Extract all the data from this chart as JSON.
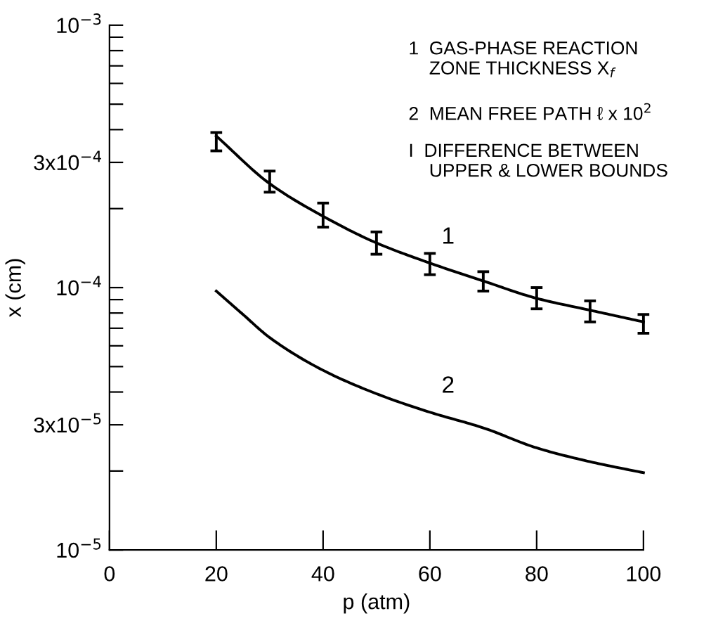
{
  "chart_data": {
    "type": "line",
    "xlabel": "p (atm)",
    "ylabel": "x (cm)",
    "log": "y",
    "xlim": [
      0,
      100
    ],
    "xticks": [
      0,
      20,
      40,
      60,
      80,
      100
    ],
    "ylim": [
      1e-05,
      0.001
    ],
    "yticks": [
      {
        "value": 1e-05,
        "label": "10$^{−5}$"
      },
      {
        "value": 2e-05,
        "label": null
      },
      {
        "value": 3e-05,
        "label": "3x10$^{−5}$"
      },
      {
        "value": 4e-05,
        "label": null
      },
      {
        "value": 5e-05,
        "label": null
      },
      {
        "value": 6e-05,
        "label": null
      },
      {
        "value": 7e-05,
        "label": null
      },
      {
        "value": 8e-05,
        "label": null
      },
      {
        "value": 9e-05,
        "label": null
      },
      {
        "value": 0.0001,
        "label": "10$^{−4}$"
      },
      {
        "value": 0.0002,
        "label": null
      },
      {
        "value": 0.0003,
        "label": "3x10$^{−4}$"
      },
      {
        "value": 0.0004,
        "label": null
      },
      {
        "value": 0.0005,
        "label": null
      },
      {
        "value": 0.0006,
        "label": null
      },
      {
        "value": 0.0007,
        "label": null
      },
      {
        "value": 0.0008,
        "label": null
      },
      {
        "value": 0.0009,
        "label": null
      },
      {
        "value": 0.001,
        "label": "10$^{−3}$"
      }
    ],
    "grid": false,
    "legend": false,
    "marker": "none",
    "line_style": "solid",
    "series": [
      {
        "name": "1",
        "color": "#000000",
        "x": [
          20,
          30,
          40,
          50,
          60,
          70,
          80,
          90,
          100
        ],
        "values": [
          0.000378,
          0.000249,
          0.000187,
          0.000148,
          0.000124,
          0.000106,
          9.1e-05,
          8.2e-05,
          7.4e-05
        ],
        "errors": [
          [
            0.000332,
            0.00039
          ],
          [
            0.000231,
            0.000278
          ],
          [
            0.00017,
            0.00021
          ],
          [
            0.000134,
            0.000163
          ],
          [
            0.000112,
            0.000135
          ],
          [
            9.7e-05,
            0.000115
          ],
          [
            8.3e-05,
            0.0001
          ],
          [
            7.4e-05,
            8.9e-05
          ],
          [
            6.7e-05,
            7.9e-05
          ]
        ]
      },
      {
        "name": "2",
        "color": "#000000",
        "x": [
          20,
          25,
          30,
          40,
          50,
          60,
          70,
          80,
          90,
          100
        ],
        "values": [
          9.7e-05,
          7.9e-05,
          6.45e-05,
          4.84e-05,
          3.94e-05,
          3.35e-05,
          2.92e-05,
          2.45e-05,
          2.17e-05,
          1.97e-05
        ]
      }
    ],
    "annotations": [
      "1  GAS-PHASE REACTION\n    ZONE THICKNESS X$_{f}$",
      "2  MEAN FREE PATH ℓ x 10$^{2}$",
      "I  DIFFERENCE BETWEEN\n    UPPER & LOWER BOUNDS"
    ]
  }
}
